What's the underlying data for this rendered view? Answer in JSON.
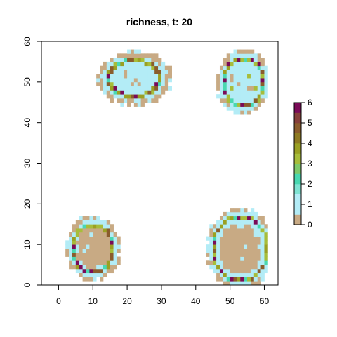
{
  "chart_data": {
    "type": "heatmap",
    "title": "richness, t: 20",
    "xlabel": "",
    "ylabel": "",
    "xlim": [
      -5,
      64
    ],
    "ylim": [
      0,
      60
    ],
    "x_ticks": [
      0,
      10,
      20,
      30,
      40,
      50,
      60
    ],
    "y_ticks": [
      0,
      10,
      20,
      30,
      40,
      50,
      60
    ],
    "grid": false,
    "legend": {
      "type": "colorbar",
      "placement": "right",
      "ticks": [
        0,
        1,
        2,
        3,
        4,
        5,
        6
      ],
      "bins": [
        {
          "from": 0.0,
          "to": 0.5,
          "color": "#c8aa84"
        },
        {
          "from": 0.5,
          "to": 1.0,
          "color": "#b3ecf6"
        },
        {
          "from": 1.0,
          "to": 1.5,
          "color": "#b3ecf6"
        },
        {
          "from": 1.5,
          "to": 2.0,
          "color": "#7fe3d2"
        },
        {
          "from": 2.0,
          "to": 2.5,
          "color": "#49d8b0"
        },
        {
          "from": 2.5,
          "to": 3.0,
          "color": "#7ec96a"
        },
        {
          "from": 3.0,
          "to": 3.5,
          "color": "#a7bd3a"
        },
        {
          "from": 3.5,
          "to": 4.0,
          "color": "#9aa023"
        },
        {
          "from": 4.0,
          "to": 4.5,
          "color": "#8e7a22"
        },
        {
          "from": 4.5,
          "to": 5.0,
          "color": "#8a5c2c"
        },
        {
          "from": 5.0,
          "to": 5.5,
          "color": "#863f3a"
        },
        {
          "from": 5.5,
          "to": 6.0,
          "color": "#7a0b58"
        }
      ]
    },
    "patches": [
      {
        "cx": 22,
        "cy": 51,
        "rx": 11,
        "ry": 6.5,
        "ring": 3.5,
        "core_richness": 1
      },
      {
        "cx": 54,
        "cy": 50,
        "rx": 8,
        "ry": 8,
        "ring": 4,
        "core_richness": 1
      },
      {
        "cx": 10,
        "cy": 9,
        "rx": 8,
        "ry": 8,
        "ring": 2,
        "core_richness": 0
      },
      {
        "cx": 53,
        "cy": 9,
        "rx": 10,
        "ry": 10,
        "ring": 3.5,
        "core_richness": 0
      }
    ]
  },
  "colors": {
    "background": "#ffffff",
    "axis": "#000000"
  }
}
